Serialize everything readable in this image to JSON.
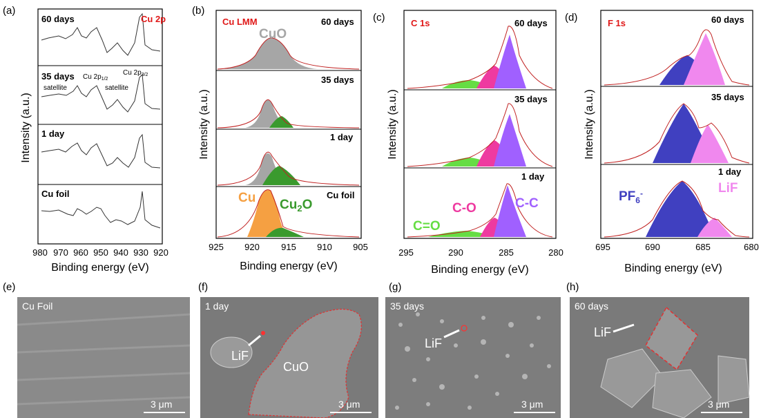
{
  "xps": {
    "panels": [
      {
        "letter": "(a)",
        "xlabel": "Binding energy (eV)",
        "ylabel": "Intensity (a.u.)",
        "ticks": [
          "980",
          "970",
          "960",
          "950",
          "940",
          "930",
          "920"
        ],
        "element": "Cu 2p",
        "samples": [
          "60 days",
          "35 days",
          "1 day",
          "Cu foil"
        ],
        "peak_labels": [
          "satellite",
          "Cu 2p1/2",
          "satellite",
          "Cu 2p3/2"
        ]
      },
      {
        "letter": "(b)",
        "xlabel": "Binding energy (eV)",
        "ylabel": "Intensity (a.u.)",
        "ticks": [
          "925",
          "920",
          "915",
          "910",
          "905"
        ],
        "element": "Cu LMM",
        "samples": [
          "60 days",
          "35 days",
          "1 day",
          "Cu foil"
        ],
        "components": [
          "CuO",
          "Cu",
          "Cu2O"
        ]
      },
      {
        "letter": "(c)",
        "xlabel": "Binding energy (eV)",
        "ylabel": "Intensity (a.u.)",
        "ticks": [
          "295",
          "290",
          "285",
          "280"
        ],
        "element": "C 1s",
        "samples": [
          "60 days",
          "35 days",
          "1 day"
        ],
        "components": [
          "C=O",
          "C-O",
          "C-C"
        ]
      },
      {
        "letter": "(d)",
        "xlabel": "Binding energy (eV)",
        "ylabel": "Intensity (a.u.)",
        "ticks": [
          "695",
          "690",
          "685",
          "680"
        ],
        "element": "F 1s",
        "samples": [
          "60 days",
          "35 days",
          "1 day"
        ],
        "components": [
          "PF6-",
          "LiF"
        ]
      }
    ]
  },
  "sem": [
    {
      "letter": "(e)",
      "label": "Cu Foil",
      "scale": "3 μm"
    },
    {
      "letter": "(f)",
      "label": "1 day",
      "scale": "3 μm",
      "annotations": [
        "LiF",
        "CuO"
      ]
    },
    {
      "letter": "(g)",
      "label": "35 days",
      "scale": "3 μm",
      "annotations": [
        "LiF"
      ]
    },
    {
      "letter": "(h)",
      "label": "60 days",
      "scale": "3 μm",
      "annotations": [
        "LiF"
      ]
    }
  ],
  "colors": {
    "cuo": "#a6a6a6",
    "cu": "#f5a042",
    "cu2o": "#3a9a2e",
    "c_o_double": "#66dd44",
    "c_o": "#ee3aa0",
    "c_c": "#a060ff",
    "pf6": "#4040c0",
    "lif": "#f088ee",
    "fit": "#c02020",
    "raw": "#333333"
  }
}
